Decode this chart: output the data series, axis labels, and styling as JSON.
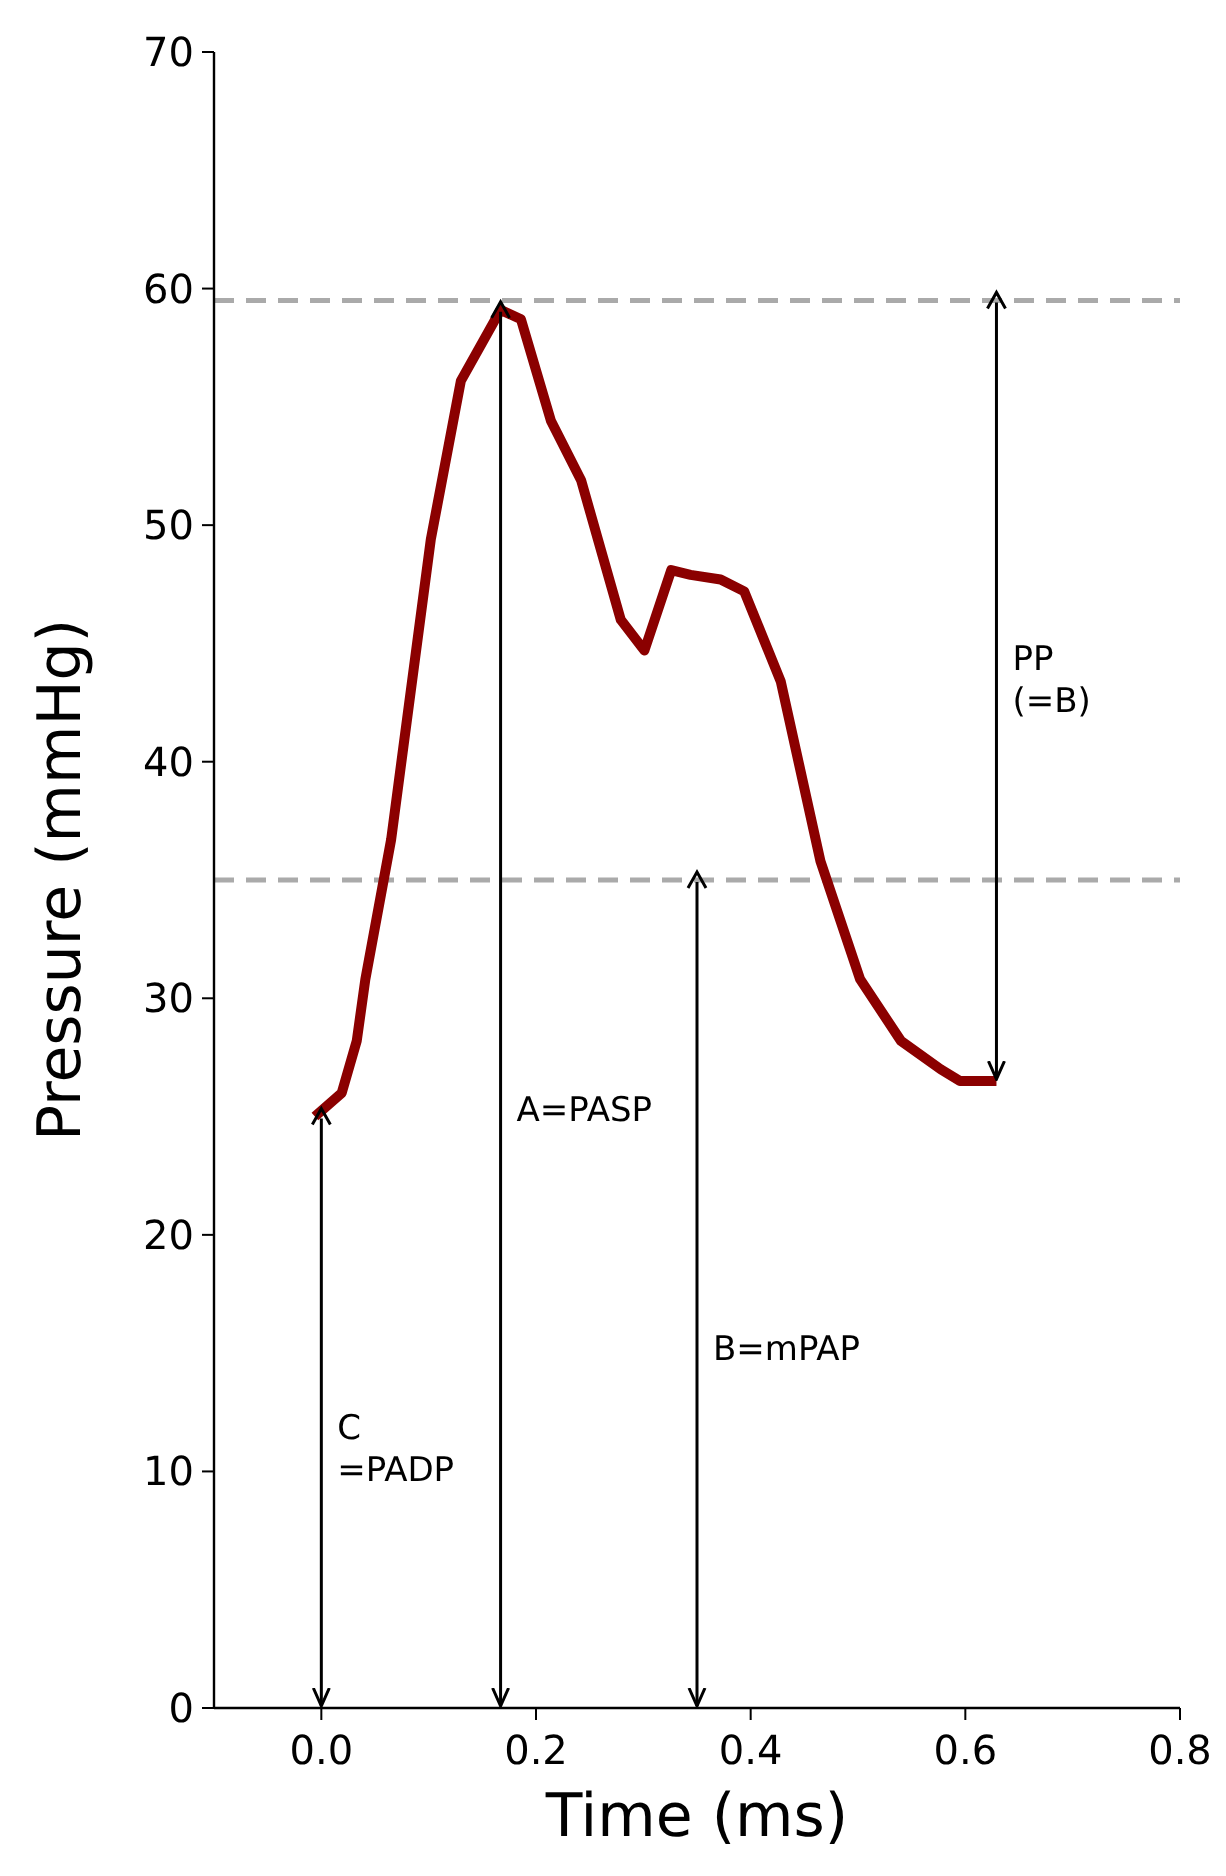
{
  "chart_data": {
    "type": "line",
    "xlabel": "Time (ms)",
    "ylabel": "Pressure (mmHg)",
    "x": [
      -0.006,
      0.019,
      0.033,
      0.041,
      0.065,
      0.102,
      0.13,
      0.167,
      0.186,
      0.214,
      0.242,
      0.279,
      0.301,
      0.326,
      0.344,
      0.372,
      0.394,
      0.428,
      0.465,
      0.502,
      0.54,
      0.577,
      0.595,
      0.629
    ],
    "series": [
      {
        "color": "#8b0000",
        "values": [
          25,
          26,
          28.2,
          30.8,
          36.7,
          49.4,
          56.1,
          59.1,
          58.7,
          54.4,
          51.9,
          46,
          44.7,
          48.1,
          47.9,
          47.7,
          47.2,
          43.4,
          35.8,
          30.8,
          28.2,
          27,
          26.5,
          26.5
        ]
      },
      {
        "type": "scatter",
        "marker": "cross",
        "color": "#000000",
        "x": [
          0,
          0.167,
          0.35,
          0.629
        ],
        "values": [
          25,
          59.1,
          35,
          59.5
        ],
        "errors": [
          [
            0,
            25
          ],
          [
            0,
            59.1
          ],
          [
            0,
            35
          ],
          [
            26.5,
            59.5
          ]
        ]
      }
    ],
    "xlim": [
      -0.1,
      0.8
    ],
    "xticks": [
      {
        "value": 0,
        "label": "0.0"
      },
      {
        "value": 0.2,
        "label": "0.2"
      },
      {
        "value": 0.4,
        "label": "0.4"
      },
      {
        "value": 0.6,
        "label": "0.6"
      },
      {
        "value": 0.8,
        "label": "0.8"
      }
    ],
    "ylim": [
      0,
      70
    ],
    "yticks": [
      0,
      10,
      20,
      30,
      40,
      50,
      60,
      70
    ],
    "ref_lines": [
      {
        "axis": "y",
        "value": 59.5,
        "color": "#aaaaaa",
        "line_style": "dashed"
      },
      {
        "axis": "y",
        "value": 35,
        "color": "#aaaaaa",
        "line_style": "dashed"
      }
    ],
    "annotations": [
      "C\n=PADP",
      "A=PASP",
      "B=mPAP",
      "PP\n(=B)"
    ],
    "grid": false,
    "marker": "none",
    "line_style": "solid"
  }
}
